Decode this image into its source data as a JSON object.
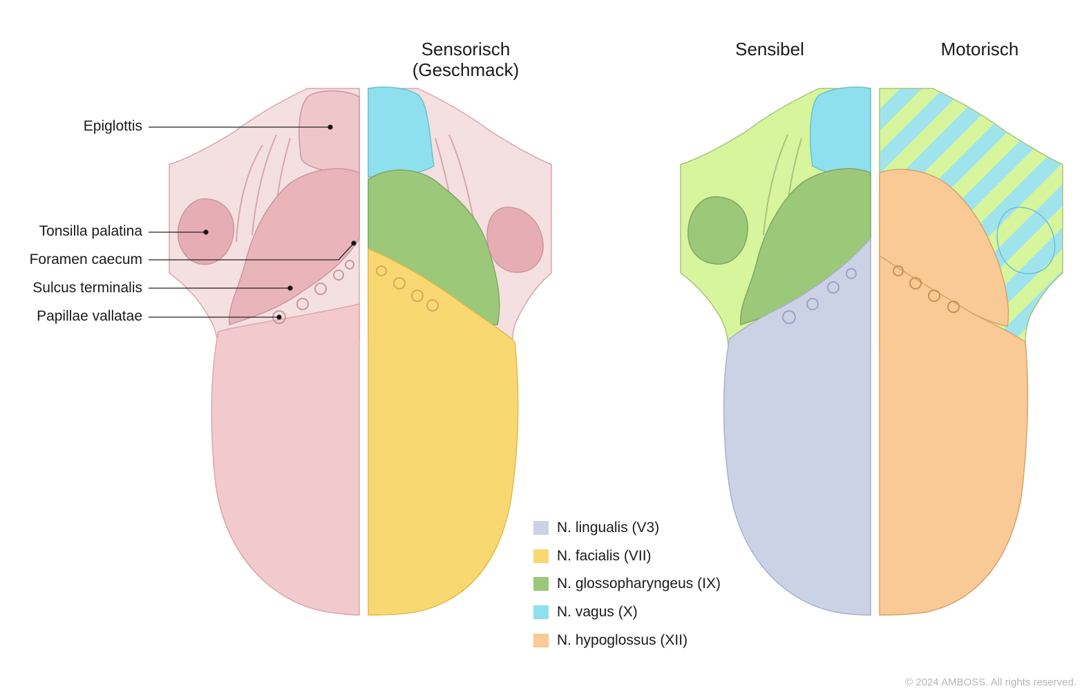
{
  "headings": {
    "sensorisch": "Sensorisch",
    "geschmack": "(Geschmack)",
    "sensibel": "Sensibel",
    "motorisch": "Motorisch"
  },
  "anatomy_labels": [
    "Epiglottis",
    "Tonsilla palatina",
    "Foramen caecum",
    "Sulcus terminalis",
    "Papillae vallatae"
  ],
  "legend": [
    {
      "label": "N. lingualis (V3)",
      "color": "#ccd2e6"
    },
    {
      "label": "N. facialis (VII)",
      "color": "#f9d872"
    },
    {
      "label": "N. glossopharyngeus (IX)",
      "color": "#9cc87a"
    },
    {
      "label": "N. vagus (X)",
      "color": "#8ee0ef"
    },
    {
      "label": "N. hypoglossus (XII)",
      "color": "#f9c996"
    }
  ],
  "copyright": "© 2024 AMBOSS. All rights reserved."
}
